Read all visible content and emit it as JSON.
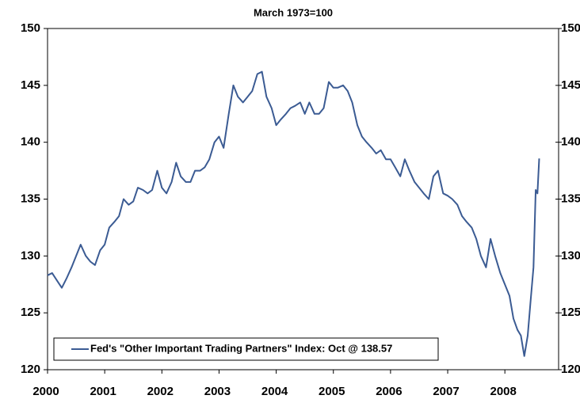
{
  "chart_data": {
    "type": "line",
    "subtitle": "March 1973=100",
    "x": [
      2000.0,
      2000.08,
      2000.17,
      2000.25,
      2000.33,
      2000.42,
      2000.5,
      2000.58,
      2000.67,
      2000.75,
      2000.83,
      2000.92,
      2001.0,
      2001.08,
      2001.17,
      2001.25,
      2001.33,
      2001.42,
      2001.5,
      2001.58,
      2001.67,
      2001.75,
      2001.83,
      2001.92,
      2002.0,
      2002.08,
      2002.17,
      2002.25,
      2002.33,
      2002.42,
      2002.5,
      2002.58,
      2002.67,
      2002.75,
      2002.83,
      2002.92,
      2003.0,
      2003.08,
      2003.17,
      2003.25,
      2003.33,
      2003.42,
      2003.5,
      2003.58,
      2003.67,
      2003.75,
      2003.83,
      2003.92,
      2004.0,
      2004.08,
      2004.17,
      2004.25,
      2004.33,
      2004.42,
      2004.5,
      2004.58,
      2004.67,
      2004.75,
      2004.83,
      2004.92,
      2005.0,
      2005.08,
      2005.17,
      2005.25,
      2005.33,
      2005.42,
      2005.5,
      2005.58,
      2005.67,
      2005.75,
      2005.83,
      2005.92,
      2006.0,
      2006.08,
      2006.17,
      2006.25,
      2006.33,
      2006.42,
      2006.5,
      2006.58,
      2006.67,
      2006.75,
      2006.83,
      2006.92,
      2007.0,
      2007.08,
      2007.17,
      2007.25,
      2007.33,
      2007.42,
      2007.5,
      2007.58,
      2007.67,
      2007.75,
      2007.83,
      2007.92,
      2008.0,
      2008.08,
      2008.15,
      2008.22,
      2008.28,
      2008.34,
      2008.4,
      2008.45,
      2008.5,
      2008.54,
      2008.57,
      2008.6
    ],
    "series": [
      {
        "name": "Fed's \"Other Important Trading Partners\" Index: Oct @ 138.57",
        "color": "#3b5b93",
        "values": [
          128.3,
          128.5,
          127.8,
          127.2,
          128,
          129,
          130,
          131,
          130,
          129.5,
          129.2,
          130.5,
          131,
          132.5,
          133,
          133.5,
          135,
          134.5,
          134.8,
          136,
          135.8,
          135.5,
          135.8,
          137.5,
          136,
          135.5,
          136.5,
          138.2,
          137,
          136.5,
          136.5,
          137.5,
          137.5,
          137.8,
          138.5,
          140,
          140.5,
          139.5,
          142.5,
          145,
          144,
          143.5,
          144,
          144.5,
          146,
          146.2,
          144,
          143,
          141.5,
          142,
          142.5,
          143,
          143.2,
          143.5,
          142.5,
          143.5,
          142.5,
          142.5,
          143,
          145.3,
          144.8,
          144.8,
          145,
          144.5,
          143.5,
          141.5,
          140.5,
          140,
          139.5,
          139,
          139.3,
          138.5,
          138.5,
          137.8,
          137,
          138.5,
          137.5,
          136.5,
          136,
          135.5,
          135,
          137,
          137.5,
          135.5,
          135.3,
          135,
          134.5,
          133.5,
          133,
          132.5,
          131.5,
          130,
          129,
          131.5,
          130,
          128.5,
          127.5,
          126.5,
          124.5,
          123.5,
          123,
          121.2,
          123,
          126,
          129,
          135.8,
          135.5,
          138.57
        ]
      }
    ],
    "xlim": [
      2000,
      2008.94
    ],
    "xticks": [
      2000,
      2001,
      2002,
      2003,
      2004,
      2005,
      2006,
      2007,
      2008
    ],
    "ylim": [
      120,
      150
    ],
    "yticks": [
      120,
      125,
      130,
      135,
      140,
      145,
      150
    ],
    "legend": "bottom-left"
  }
}
